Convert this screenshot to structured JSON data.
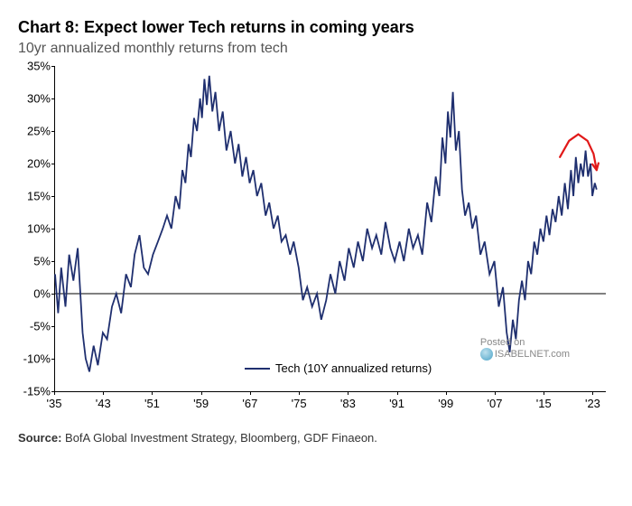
{
  "title": "Chart 8: Expect lower Tech returns in coming years",
  "subtitle": "10yr annualized monthly returns from tech",
  "source_label": "Source:",
  "source_text": "BofA Global Investment Strategy, Bloomberg, GDF Finaeon.",
  "watermark_line1": "Posted on",
  "watermark_line2": "ISABELNET.com",
  "legend_label": "Tech (10Y annualized returns)",
  "chart": {
    "type": "line",
    "line_color": "#1f2f6f",
    "line_width": 1.8,
    "arrow_color": "#e11919",
    "arrow_width": 2.2,
    "background_color": "#ffffff",
    "zero_line_color": "#000000",
    "font_size_tick": 13,
    "ylim": [
      -15,
      35
    ],
    "ytick_step": 5,
    "y_ticks": [
      -15,
      -10,
      -5,
      0,
      5,
      10,
      15,
      20,
      25,
      30,
      35
    ],
    "xlim": [
      1935,
      2025
    ],
    "x_ticks": [
      1935,
      1943,
      1951,
      1959,
      1967,
      1975,
      1983,
      1991,
      1999,
      2007,
      2015,
      2023
    ],
    "x_tick_labels": [
      "'35",
      "'43",
      "'51",
      "'59",
      "'67",
      "'75",
      "'83",
      "'91",
      "'99",
      "'07",
      "'15",
      "'23"
    ],
    "series": [
      {
        "x": 1935,
        "y": 3
      },
      {
        "x": 1935.5,
        "y": -3
      },
      {
        "x": 1936,
        "y": 4
      },
      {
        "x": 1936.7,
        "y": -2
      },
      {
        "x": 1937.3,
        "y": 6
      },
      {
        "x": 1938,
        "y": 2
      },
      {
        "x": 1938.7,
        "y": 7
      },
      {
        "x": 1939.5,
        "y": -6
      },
      {
        "x": 1940,
        "y": -10
      },
      {
        "x": 1940.6,
        "y": -12
      },
      {
        "x": 1941.3,
        "y": -8
      },
      {
        "x": 1942,
        "y": -11
      },
      {
        "x": 1942.8,
        "y": -6
      },
      {
        "x": 1943.5,
        "y": -7
      },
      {
        "x": 1944.3,
        "y": -2
      },
      {
        "x": 1945,
        "y": 0
      },
      {
        "x": 1945.8,
        "y": -3
      },
      {
        "x": 1946.6,
        "y": 3
      },
      {
        "x": 1947.4,
        "y": 1
      },
      {
        "x": 1948,
        "y": 6
      },
      {
        "x": 1948.8,
        "y": 9
      },
      {
        "x": 1949.5,
        "y": 4
      },
      {
        "x": 1950.2,
        "y": 3
      },
      {
        "x": 1951,
        "y": 6
      },
      {
        "x": 1951.8,
        "y": 8
      },
      {
        "x": 1952.6,
        "y": 10
      },
      {
        "x": 1953.3,
        "y": 12
      },
      {
        "x": 1954,
        "y": 10
      },
      {
        "x": 1954.7,
        "y": 15
      },
      {
        "x": 1955.3,
        "y": 13
      },
      {
        "x": 1955.8,
        "y": 19
      },
      {
        "x": 1956.3,
        "y": 17
      },
      {
        "x": 1956.8,
        "y": 23
      },
      {
        "x": 1957.2,
        "y": 21
      },
      {
        "x": 1957.7,
        "y": 27
      },
      {
        "x": 1958.2,
        "y": 25
      },
      {
        "x": 1958.7,
        "y": 30
      },
      {
        "x": 1959,
        "y": 27
      },
      {
        "x": 1959.4,
        "y": 33
      },
      {
        "x": 1959.8,
        "y": 29
      },
      {
        "x": 1960.2,
        "y": 33.5
      },
      {
        "x": 1960.7,
        "y": 28
      },
      {
        "x": 1961.2,
        "y": 31
      },
      {
        "x": 1961.8,
        "y": 25
      },
      {
        "x": 1962.4,
        "y": 28
      },
      {
        "x": 1963,
        "y": 22
      },
      {
        "x": 1963.7,
        "y": 25
      },
      {
        "x": 1964.4,
        "y": 20
      },
      {
        "x": 1965,
        "y": 23
      },
      {
        "x": 1965.6,
        "y": 18
      },
      {
        "x": 1966.2,
        "y": 21
      },
      {
        "x": 1966.8,
        "y": 17
      },
      {
        "x": 1967.4,
        "y": 19
      },
      {
        "x": 1968,
        "y": 15
      },
      {
        "x": 1968.7,
        "y": 17
      },
      {
        "x": 1969.4,
        "y": 12
      },
      {
        "x": 1970,
        "y": 14
      },
      {
        "x": 1970.7,
        "y": 10
      },
      {
        "x": 1971.4,
        "y": 12
      },
      {
        "x": 1972,
        "y": 8
      },
      {
        "x": 1972.7,
        "y": 9
      },
      {
        "x": 1973.4,
        "y": 6
      },
      {
        "x": 1974,
        "y": 8
      },
      {
        "x": 1974.8,
        "y": 4
      },
      {
        "x": 1975.5,
        "y": -1
      },
      {
        "x": 1976.2,
        "y": 1
      },
      {
        "x": 1977,
        "y": -2
      },
      {
        "x": 1977.8,
        "y": 0
      },
      {
        "x": 1978.5,
        "y": -4
      },
      {
        "x": 1979.3,
        "y": -1
      },
      {
        "x": 1980,
        "y": 3
      },
      {
        "x": 1980.8,
        "y": 0
      },
      {
        "x": 1981.5,
        "y": 5
      },
      {
        "x": 1982.3,
        "y": 2
      },
      {
        "x": 1983,
        "y": 7
      },
      {
        "x": 1983.8,
        "y": 4
      },
      {
        "x": 1984.5,
        "y": 8
      },
      {
        "x": 1985.3,
        "y": 5
      },
      {
        "x": 1986,
        "y": 10
      },
      {
        "x": 1986.8,
        "y": 7
      },
      {
        "x": 1987.5,
        "y": 9
      },
      {
        "x": 1988.3,
        "y": 6
      },
      {
        "x": 1989,
        "y": 11
      },
      {
        "x": 1989.8,
        "y": 7
      },
      {
        "x": 1990.5,
        "y": 5
      },
      {
        "x": 1991.3,
        "y": 8
      },
      {
        "x": 1992,
        "y": 5
      },
      {
        "x": 1992.8,
        "y": 10
      },
      {
        "x": 1993.5,
        "y": 7
      },
      {
        "x": 1994.3,
        "y": 9
      },
      {
        "x": 1995,
        "y": 6
      },
      {
        "x": 1995.8,
        "y": 14
      },
      {
        "x": 1996.5,
        "y": 11
      },
      {
        "x": 1997.2,
        "y": 18
      },
      {
        "x": 1997.8,
        "y": 15
      },
      {
        "x": 1998.3,
        "y": 24
      },
      {
        "x": 1998.8,
        "y": 20
      },
      {
        "x": 1999.2,
        "y": 28
      },
      {
        "x": 1999.6,
        "y": 24
      },
      {
        "x": 2000,
        "y": 31
      },
      {
        "x": 2000.5,
        "y": 22
      },
      {
        "x": 2001,
        "y": 25
      },
      {
        "x": 2001.5,
        "y": 16
      },
      {
        "x": 2002,
        "y": 12
      },
      {
        "x": 2002.6,
        "y": 14
      },
      {
        "x": 2003.2,
        "y": 10
      },
      {
        "x": 2003.8,
        "y": 12
      },
      {
        "x": 2004.5,
        "y": 6
      },
      {
        "x": 2005.2,
        "y": 8
      },
      {
        "x": 2006,
        "y": 3
      },
      {
        "x": 2006.8,
        "y": 5
      },
      {
        "x": 2007.5,
        "y": -2
      },
      {
        "x": 2008.2,
        "y": 1
      },
      {
        "x": 2008.8,
        "y": -6
      },
      {
        "x": 2009.3,
        "y": -9
      },
      {
        "x": 2009.8,
        "y": -4
      },
      {
        "x": 2010.3,
        "y": -7
      },
      {
        "x": 2010.8,
        "y": -1
      },
      {
        "x": 2011.3,
        "y": 2
      },
      {
        "x": 2011.8,
        "y": -1
      },
      {
        "x": 2012.3,
        "y": 5
      },
      {
        "x": 2012.8,
        "y": 3
      },
      {
        "x": 2013.3,
        "y": 8
      },
      {
        "x": 2013.8,
        "y": 6
      },
      {
        "x": 2014.3,
        "y": 10
      },
      {
        "x": 2014.8,
        "y": 8
      },
      {
        "x": 2015.3,
        "y": 12
      },
      {
        "x": 2015.8,
        "y": 9
      },
      {
        "x": 2016.3,
        "y": 13
      },
      {
        "x": 2016.8,
        "y": 11
      },
      {
        "x": 2017.3,
        "y": 15
      },
      {
        "x": 2017.8,
        "y": 12
      },
      {
        "x": 2018.3,
        "y": 17
      },
      {
        "x": 2018.8,
        "y": 13
      },
      {
        "x": 2019.3,
        "y": 19
      },
      {
        "x": 2019.7,
        "y": 15
      },
      {
        "x": 2020.1,
        "y": 21
      },
      {
        "x": 2020.5,
        "y": 17
      },
      {
        "x": 2020.9,
        "y": 20
      },
      {
        "x": 2021.3,
        "y": 18
      },
      {
        "x": 2021.7,
        "y": 22
      },
      {
        "x": 2022.1,
        "y": 18
      },
      {
        "x": 2022.5,
        "y": 20
      },
      {
        "x": 2022.8,
        "y": 15
      },
      {
        "x": 2023.2,
        "y": 17
      },
      {
        "x": 2023.5,
        "y": 16
      }
    ],
    "arrow": {
      "points": [
        {
          "x": 2017.5,
          "y": 21
        },
        {
          "x": 2019,
          "y": 23.5
        },
        {
          "x": 2020.5,
          "y": 24.5
        },
        {
          "x": 2022,
          "y": 23.5
        },
        {
          "x": 2023,
          "y": 21.5
        },
        {
          "x": 2023.5,
          "y": 19
        }
      ]
    }
  }
}
